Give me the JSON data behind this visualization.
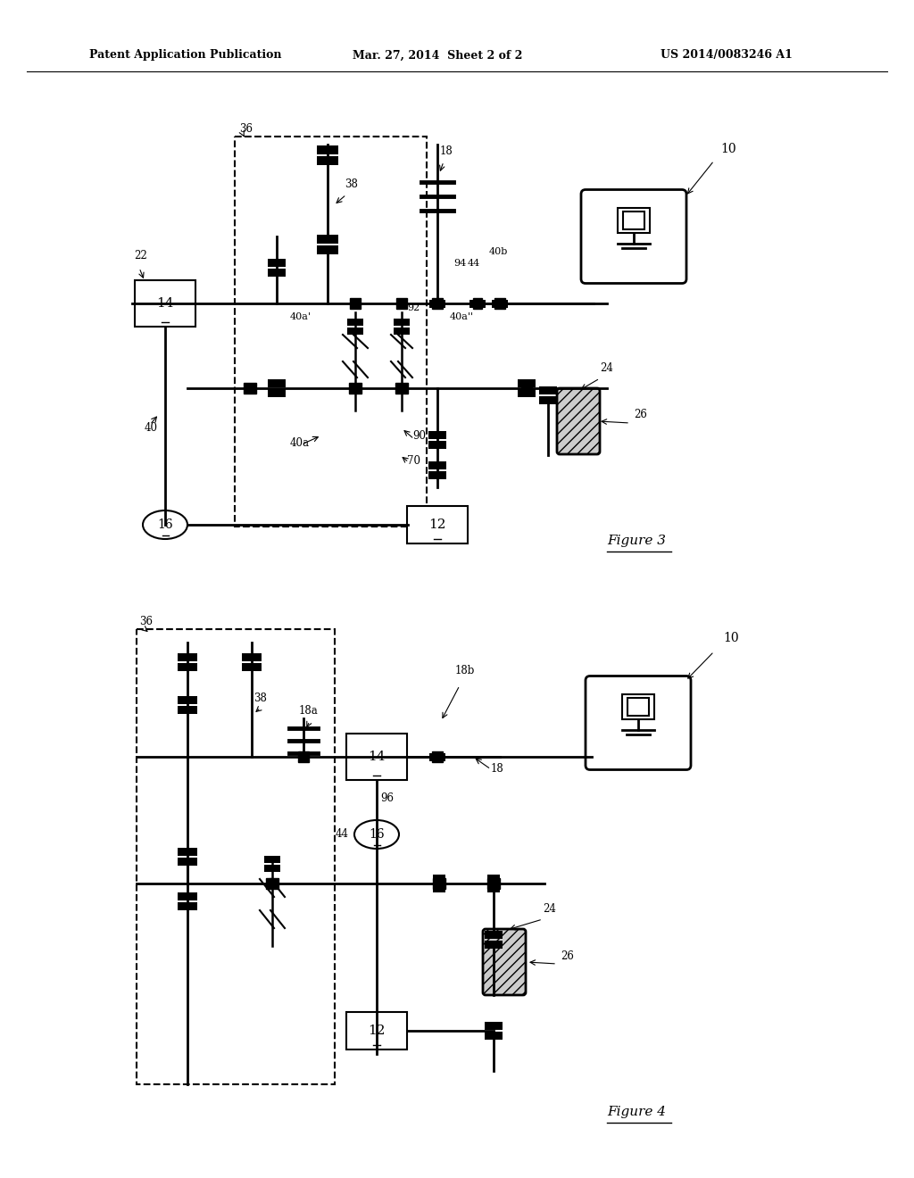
{
  "bg_color": "#ffffff",
  "header_left": "Patent Application Publication",
  "header_mid": "Mar. 27, 2014  Sheet 2 of 2",
  "header_right": "US 2014/0083246 A1",
  "fig3_label": "Figure 3",
  "fig4_label": "Figure 4"
}
